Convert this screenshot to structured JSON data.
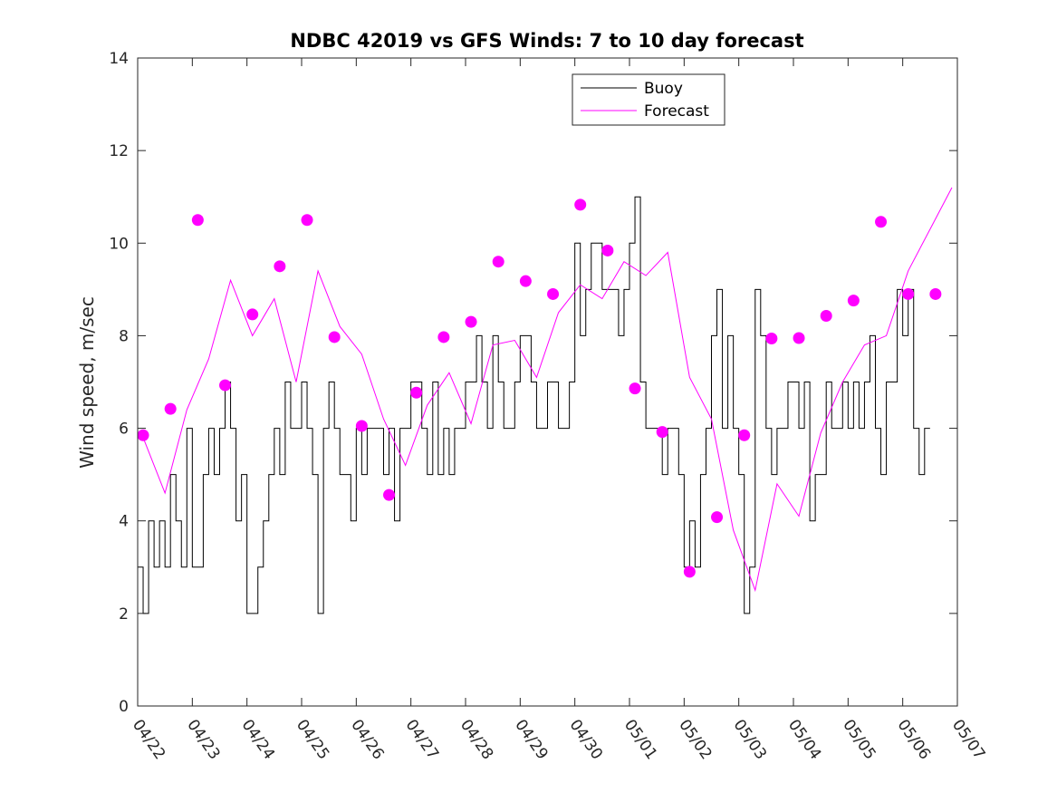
{
  "chart_data": {
    "type": "line",
    "title": "NDBC 42019 vs GFS Winds: 7 to 10 day forecast",
    "xlabel": "",
    "ylabel": "Wind speed, m/sec",
    "xlim": [
      "04/22",
      "05/07"
    ],
    "ylim": [
      0,
      14
    ],
    "x_ticks": [
      "04/22",
      "04/23",
      "04/24",
      "04/25",
      "04/26",
      "04/27",
      "04/28",
      "04/29",
      "04/30",
      "05/01",
      "05/02",
      "05/03",
      "05/04",
      "05/05",
      "05/06",
      "05/07"
    ],
    "y_ticks": [
      0,
      2,
      4,
      6,
      8,
      10,
      12,
      14
    ],
    "grid": false,
    "legend": {
      "placement": "top-center",
      "entries": [
        "Buoy",
        "Forecast"
      ]
    },
    "colors": {
      "buoy": "#000000",
      "forecast": "#ff00ff"
    },
    "series": [
      {
        "name": "Buoy",
        "x_days": [
          0.0,
          0.1,
          0.2,
          0.3,
          0.4,
          0.5,
          0.6,
          0.7,
          0.8,
          0.9,
          1.0,
          1.1,
          1.2,
          1.3,
          1.4,
          1.5,
          1.6,
          1.7,
          1.8,
          1.9,
          2.0,
          2.1,
          2.2,
          2.3,
          2.4,
          2.5,
          2.6,
          2.7,
          2.8,
          2.9,
          3.0,
          3.1,
          3.2,
          3.3,
          3.4,
          3.5,
          3.6,
          3.7,
          3.8,
          3.9,
          4.0,
          4.1,
          4.2,
          4.3,
          4.4,
          4.5,
          4.6,
          4.7,
          4.8,
          4.9,
          5.0,
          5.1,
          5.2,
          5.3,
          5.4,
          5.5,
          5.6,
          5.7,
          5.8,
          5.9,
          6.0,
          6.1,
          6.2,
          6.3,
          6.4,
          6.5,
          6.6,
          6.7,
          6.8,
          6.9,
          7.0,
          7.1,
          7.2,
          7.3,
          7.4,
          7.5,
          7.6,
          7.7,
          7.8,
          7.9,
          8.0,
          8.1,
          8.2,
          8.3,
          8.4,
          8.5,
          8.6,
          8.7,
          8.8,
          8.9,
          9.0,
          9.1,
          9.2,
          9.3,
          9.4,
          9.5,
          9.6,
          9.7,
          9.8,
          9.9,
          10.0,
          10.1,
          10.2,
          10.3,
          10.4,
          10.5,
          10.6,
          10.7,
          10.8,
          10.9,
          11.0,
          11.1,
          11.2,
          11.3,
          11.4,
          11.5,
          11.6,
          11.7,
          11.8,
          11.9,
          12.0,
          12.1,
          12.2,
          12.3,
          12.4,
          12.5,
          12.6,
          12.7,
          12.8,
          12.9,
          13.0,
          13.1,
          13.2,
          13.3,
          13.4,
          13.5,
          13.6,
          13.7,
          13.8,
          13.9,
          14.0,
          14.1,
          14.2,
          14.3,
          14.4,
          14.5
        ],
        "values": [
          3,
          2,
          4,
          3,
          4,
          3,
          5,
          4,
          3,
          6,
          3,
          3,
          5,
          6,
          5,
          6,
          7,
          6,
          4,
          5,
          2,
          2,
          3,
          4,
          5,
          6,
          5,
          7,
          6,
          6,
          7,
          6,
          5,
          2,
          6,
          7,
          6,
          5,
          5,
          4,
          6,
          5,
          6,
          6,
          6,
          5,
          6,
          4,
          6,
          6,
          7,
          7,
          6,
          5,
          7,
          5,
          6,
          5,
          6,
          6,
          7,
          7,
          8,
          7,
          6,
          8,
          7,
          6,
          6,
          7,
          8,
          8,
          7,
          6,
          6,
          7,
          7,
          6,
          6,
          7,
          10,
          8,
          9,
          10,
          10,
          9,
          9,
          9,
          8,
          9,
          10,
          11,
          7,
          6,
          6,
          6,
          5,
          6,
          6,
          5,
          3,
          4,
          3,
          5,
          6,
          8,
          9,
          6,
          8,
          6,
          5,
          2,
          3,
          9,
          8,
          6,
          5,
          6,
          6,
          7,
          7,
          6,
          7,
          4,
          5,
          5,
          7,
          6,
          6,
          7,
          6,
          7,
          6,
          7,
          8,
          6,
          5,
          7,
          7,
          9,
          8,
          9,
          6,
          5,
          6,
          6
        ]
      },
      {
        "name": "Forecast",
        "x_days": [
          0.1,
          0.5,
          0.9,
          1.3,
          1.7,
          2.1,
          2.5,
          2.9,
          3.3,
          3.7,
          4.1,
          4.5,
          4.9,
          5.3,
          5.7,
          6.1,
          6.5,
          6.9,
          7.3,
          7.7,
          8.1,
          8.5,
          8.9,
          9.3,
          9.7,
          10.1,
          10.5,
          10.9,
          11.3,
          11.7,
          12.1,
          12.5,
          12.9,
          13.3,
          13.7,
          14.1,
          14.5,
          14.9
        ],
        "values": [
          5.8,
          4.6,
          6.4,
          7.5,
          9.2,
          8.0,
          8.8,
          7.0,
          9.4,
          8.2,
          7.6,
          6.2,
          5.2,
          6.5,
          7.2,
          6.1,
          7.8,
          7.9,
          7.1,
          8.5,
          9.1,
          8.8,
          9.6,
          9.3,
          9.8,
          7.1,
          6.2,
          3.8,
          2.5,
          4.8,
          4.1,
          5.9,
          7.0,
          7.8,
          8.0,
          9.4,
          10.3,
          11.2
        ]
      }
    ],
    "markers": {
      "series": "Forecast",
      "x_days": [
        0.1,
        0.6,
        1.1,
        1.6,
        2.1,
        2.6,
        3.1,
        3.6,
        4.1,
        4.6,
        5.1,
        5.6,
        6.1,
        6.6,
        7.1,
        7.6,
        8.1,
        8.6,
        9.1,
        9.6,
        10.1,
        10.6,
        11.1,
        11.6,
        12.1,
        12.6,
        13.1,
        13.6,
        14.1,
        14.6
      ],
      "values": [
        5.85,
        6.42,
        10.5,
        6.93,
        8.46,
        9.5,
        10.5,
        7.97,
        6.05,
        4.56,
        6.77,
        7.97,
        8.3,
        9.6,
        9.18,
        8.9,
        10.83,
        9.84,
        6.86,
        5.92,
        2.9,
        4.08,
        5.85,
        7.94,
        7.95,
        8.43,
        8.76,
        10.46,
        8.9,
        8.9
      ]
    }
  }
}
